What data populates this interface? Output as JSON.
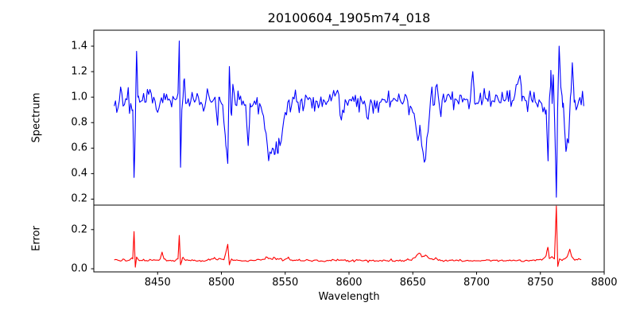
{
  "chart_data": {
    "type": "line",
    "title": "20100604_1905m74_018",
    "xlabel": "Wavelength",
    "xlim": [
      8400,
      8800
    ],
    "x_ticks": [
      8450,
      8500,
      8550,
      8600,
      8650,
      8700,
      8750,
      8800
    ],
    "grid": false,
    "legend": null,
    "panels": [
      {
        "name": "spectrum",
        "ylabel": "Spectrum",
        "ylim": [
          0.153,
          1.525
        ],
        "ytick_labels": [
          "0.2",
          "0.4",
          "0.6",
          "0.8",
          "1.0",
          "1.2",
          "1.4"
        ],
        "line_color": "#0000ff",
        "x_start": 8416,
        "x_end": 8784,
        "x_step": 1,
        "baseline": 0.97,
        "noise_sigma": 0.045,
        "noise_seed": 20100604,
        "keypoints": [
          [
            8416,
            0.93
          ],
          [
            8418,
            0.88
          ],
          [
            8420,
            0.97
          ],
          [
            8421,
            1.08
          ],
          [
            8423,
            0.93
          ],
          [
            8426,
            0.98
          ],
          [
            8429,
            0.95
          ],
          [
            8430.5,
            0.9
          ],
          [
            8431.5,
            0.37
          ],
          [
            8432.5,
            0.8
          ],
          [
            8433.5,
            1.36
          ],
          [
            8434.5,
            1.0
          ],
          [
            8436,
            0.96
          ],
          [
            8440,
            0.96
          ],
          [
            8444,
            1.06
          ],
          [
            8448,
            0.97
          ],
          [
            8452,
            0.96
          ],
          [
            8456,
            0.98
          ],
          [
            8460,
            0.97
          ],
          [
            8464,
            0.98
          ],
          [
            8466,
            1.03
          ],
          [
            8467,
            1.44
          ],
          [
            8468,
            0.45
          ],
          [
            8469,
            0.9
          ],
          [
            8470.5,
            1.13
          ],
          [
            8472,
            0.95
          ],
          [
            8476,
            0.97
          ],
          [
            8480,
            0.98
          ],
          [
            8484,
            0.96
          ],
          [
            8488,
            0.98
          ],
          [
            8492,
            0.96
          ],
          [
            8495,
            1.0
          ],
          [
            8497,
            0.78
          ],
          [
            8498.5,
            1.0
          ],
          [
            8500,
            0.95
          ],
          [
            8502,
            0.8
          ],
          [
            8503.5,
            0.62
          ],
          [
            8505,
            0.48
          ],
          [
            8506.2,
            1.24
          ],
          [
            8507.5,
            0.88
          ],
          [
            8509,
            1.1
          ],
          [
            8511,
            0.94
          ],
          [
            8514,
            0.98
          ],
          [
            8517,
            0.97
          ],
          [
            8519,
            0.94
          ],
          [
            8521,
            0.62
          ],
          [
            8522.5,
            0.95
          ],
          [
            8526,
            0.97
          ],
          [
            8530,
            0.95
          ],
          [
            8532,
            0.88
          ],
          [
            8534,
            0.75
          ],
          [
            8536,
            0.62
          ],
          [
            8538,
            0.57
          ],
          [
            8540,
            0.6
          ],
          [
            8541.5,
            0.55
          ],
          [
            8543,
            0.65
          ],
          [
            8544.5,
            0.56
          ],
          [
            8546,
            0.62
          ],
          [
            8548,
            0.75
          ],
          [
            8550,
            0.88
          ],
          [
            8552,
            0.96
          ],
          [
            8556,
            1.0
          ],
          [
            8562,
            0.97
          ],
          [
            8568,
            0.98
          ],
          [
            8574,
            0.97
          ],
          [
            8580,
            0.98
          ],
          [
            8586,
            0.97
          ],
          [
            8592,
            1.02
          ],
          [
            8594,
            0.82
          ],
          [
            8597,
            0.98
          ],
          [
            8602,
            0.97
          ],
          [
            8607,
            0.99
          ],
          [
            8612,
            0.97
          ],
          [
            8614,
            0.84
          ],
          [
            8617,
            0.98
          ],
          [
            8622,
            0.97
          ],
          [
            8628,
            0.98
          ],
          [
            8634,
            0.97
          ],
          [
            8640,
            0.98
          ],
          [
            8646,
            0.97
          ],
          [
            8648,
            0.93
          ],
          [
            8650,
            0.88
          ],
          [
            8652,
            0.8
          ],
          [
            8654,
            0.66
          ],
          [
            8655.5,
            0.78
          ],
          [
            8657,
            0.62
          ],
          [
            8659,
            0.49
          ],
          [
            8661,
            0.68
          ],
          [
            8663,
            0.85
          ],
          [
            8665,
            1.08
          ],
          [
            8667,
            0.94
          ],
          [
            8669,
            1.1
          ],
          [
            8671,
            0.92
          ],
          [
            8675,
            0.96
          ],
          [
            8680,
            0.98
          ],
          [
            8685,
            0.97
          ],
          [
            8690,
            0.99
          ],
          [
            8695,
            0.97
          ],
          [
            8697,
            1.2
          ],
          [
            8698.5,
            0.95
          ],
          [
            8702,
            0.97
          ],
          [
            8707,
            0.99
          ],
          [
            8712,
            0.97
          ],
          [
            8717,
            0.98
          ],
          [
            8722,
            0.97
          ],
          [
            8724,
            1.05
          ],
          [
            8728,
            0.97
          ],
          [
            8732,
            1.1
          ],
          [
            8734,
            1.17
          ],
          [
            8735.5,
            0.97
          ],
          [
            8739,
            0.97
          ],
          [
            8743,
            0.98
          ],
          [
            8747,
            0.95
          ],
          [
            8751,
            0.95
          ],
          [
            8753,
            0.92
          ],
          [
            8754.5,
            0.9
          ],
          [
            8756,
            0.5
          ],
          [
            8757.2,
            1.0
          ],
          [
            8758.2,
            1.21
          ],
          [
            8759.2,
            0.95
          ],
          [
            8760.2,
            1.15
          ],
          [
            8761.2,
            0.8
          ],
          [
            8762.5,
            0.215
          ],
          [
            8763.5,
            0.9
          ],
          [
            8764.7,
            1.4
          ],
          [
            8766,
            1.08
          ],
          [
            8767.5,
            0.92
          ],
          [
            8769,
            0.75
          ],
          [
            8770.5,
            0.6
          ],
          [
            8772,
            0.64
          ],
          [
            8773.5,
            1.0
          ],
          [
            8775,
            1.27
          ],
          [
            8776.5,
            0.96
          ],
          [
            8778,
            0.9
          ],
          [
            8780,
            0.97
          ],
          [
            8782,
            0.94
          ],
          [
            8784,
            0.93
          ]
        ]
      },
      {
        "name": "error",
        "ylabel": "Error",
        "ylim": [
          -0.016,
          0.325
        ],
        "ytick_labels": [
          "0.0",
          "0.2"
        ],
        "line_color": "#ff0000",
        "x_start": 8416,
        "x_end": 8782,
        "x_step": 1,
        "baseline": 0.04,
        "noise_sigma": 0.003,
        "noise_seed": 1905074,
        "keypoints": [
          [
            8416,
            0.045
          ],
          [
            8422,
            0.042
          ],
          [
            8428,
            0.044
          ],
          [
            8430.5,
            0.05
          ],
          [
            8431.5,
            0.19
          ],
          [
            8432.5,
            0.008
          ],
          [
            8433.5,
            0.06
          ],
          [
            8435,
            0.045
          ],
          [
            8442,
            0.04
          ],
          [
            8450,
            0.044
          ],
          [
            8452,
            0.05
          ],
          [
            8453.5,
            0.085
          ],
          [
            8455,
            0.05
          ],
          [
            8458,
            0.042
          ],
          [
            8464,
            0.042
          ],
          [
            8466,
            0.05
          ],
          [
            8467,
            0.17
          ],
          [
            8468,
            0.02
          ],
          [
            8469.5,
            0.055
          ],
          [
            8472,
            0.043
          ],
          [
            8480,
            0.04
          ],
          [
            8488,
            0.042
          ],
          [
            8493,
            0.05
          ],
          [
            8494.5,
            0.058
          ],
          [
            8496,
            0.047
          ],
          [
            8499,
            0.052
          ],
          [
            8502,
            0.046
          ],
          [
            8505,
            0.125
          ],
          [
            8506.2,
            0.02
          ],
          [
            8508,
            0.05
          ],
          [
            8511,
            0.043
          ],
          [
            8518,
            0.04
          ],
          [
            8526,
            0.042
          ],
          [
            8533,
            0.048
          ],
          [
            8536,
            0.058
          ],
          [
            8539,
            0.05
          ],
          [
            8542,
            0.055
          ],
          [
            8545,
            0.048
          ],
          [
            8549,
            0.044
          ],
          [
            8552.5,
            0.06
          ],
          [
            8555,
            0.045
          ],
          [
            8562,
            0.041
          ],
          [
            8572,
            0.042
          ],
          [
            8582,
            0.04
          ],
          [
            8592,
            0.043
          ],
          [
            8602,
            0.041
          ],
          [
            8612,
            0.042
          ],
          [
            8622,
            0.041
          ],
          [
            8632,
            0.042
          ],
          [
            8642,
            0.042
          ],
          [
            8648,
            0.045
          ],
          [
            8652,
            0.058
          ],
          [
            8655,
            0.08
          ],
          [
            8657.5,
            0.062
          ],
          [
            8660,
            0.07
          ],
          [
            8663,
            0.052
          ],
          [
            8666,
            0.046
          ],
          [
            8669,
            0.05
          ],
          [
            8673,
            0.043
          ],
          [
            8682,
            0.041
          ],
          [
            8692,
            0.042
          ],
          [
            8702,
            0.041
          ],
          [
            8712,
            0.042
          ],
          [
            8722,
            0.041
          ],
          [
            8732,
            0.042
          ],
          [
            8742,
            0.043
          ],
          [
            8748,
            0.046
          ],
          [
            8752,
            0.05
          ],
          [
            8754.5,
            0.068
          ],
          [
            8755.8,
            0.11
          ],
          [
            8757,
            0.052
          ],
          [
            8759,
            0.062
          ],
          [
            8761,
            0.05
          ],
          [
            8762.5,
            0.32
          ],
          [
            8763.6,
            0.012
          ],
          [
            8765,
            0.05
          ],
          [
            8767,
            0.042
          ],
          [
            8769,
            0.05
          ],
          [
            8771,
            0.062
          ],
          [
            8773,
            0.1
          ],
          [
            8774.5,
            0.062
          ],
          [
            8776,
            0.05
          ],
          [
            8778,
            0.048
          ],
          [
            8780,
            0.052
          ],
          [
            8782,
            0.046
          ]
        ]
      }
    ],
    "colors": {
      "spectrum_line": "#0000ff",
      "error_line": "#ff0000",
      "axes": "#000000",
      "text": "#000000",
      "background": "#ffffff"
    }
  }
}
